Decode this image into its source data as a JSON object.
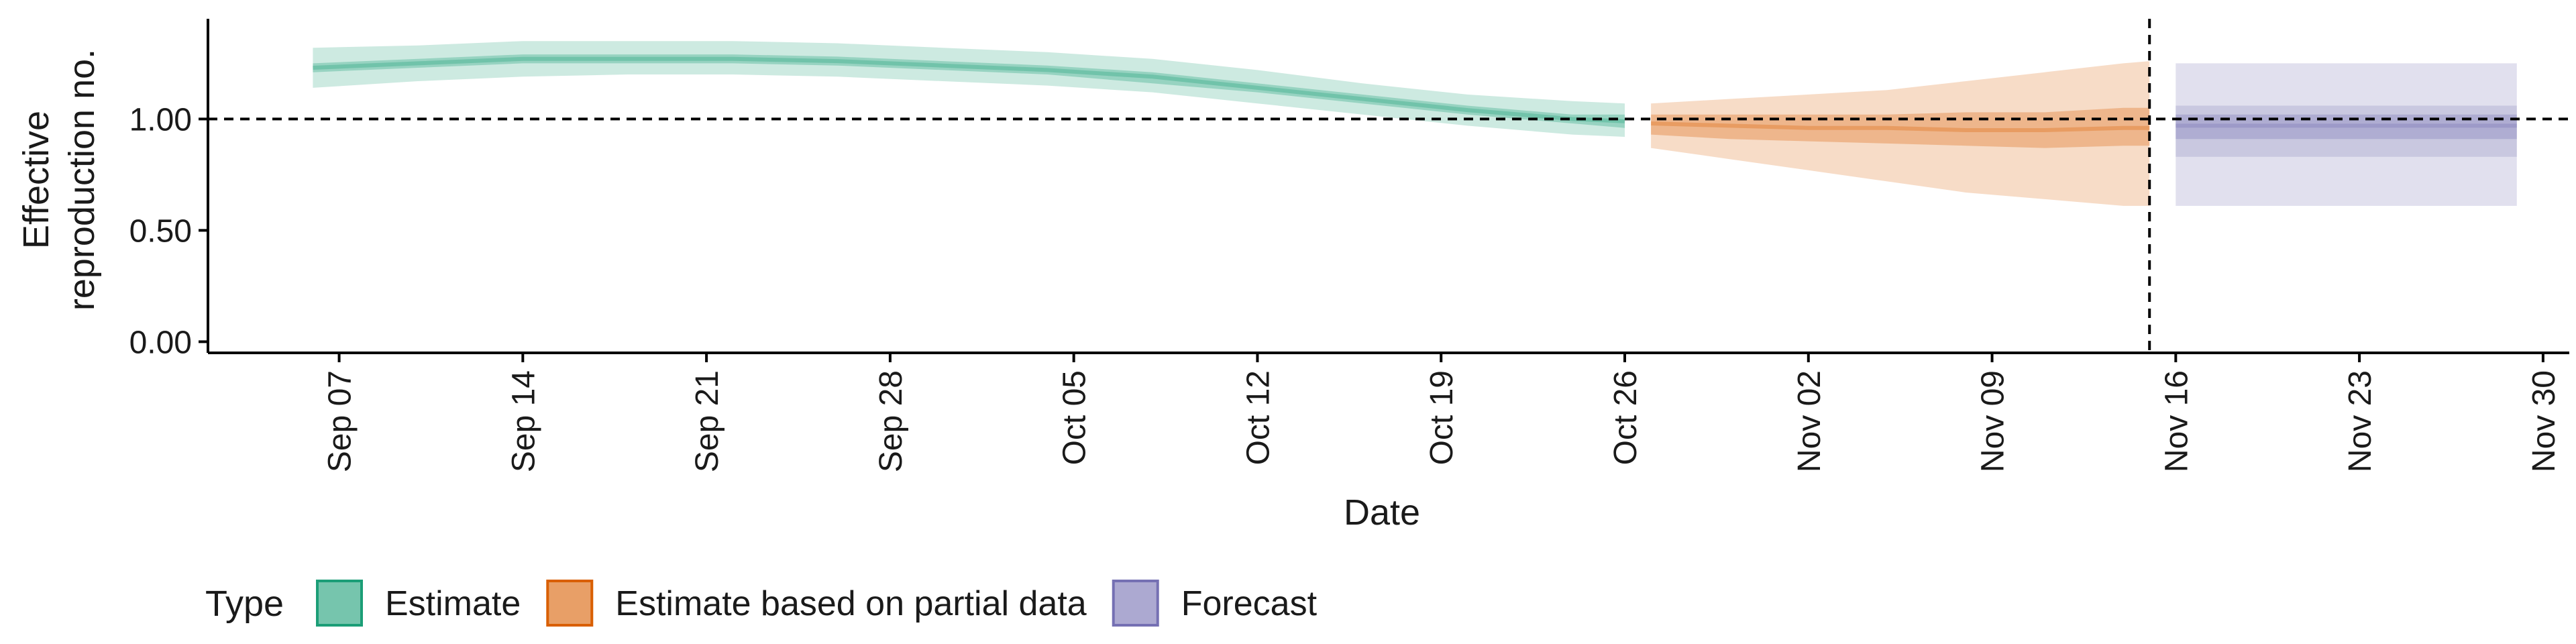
{
  "chart_data": {
    "type": "area",
    "xlabel": "Date",
    "ylabel_lines": [
      "Effective",
      "reproduction no."
    ],
    "x_ticks": [
      {
        "date": "2020-09-07",
        "label": "Sep 07"
      },
      {
        "date": "2020-09-14",
        "label": "Sep 14"
      },
      {
        "date": "2020-09-21",
        "label": "Sep 21"
      },
      {
        "date": "2020-09-28",
        "label": "Sep 28"
      },
      {
        "date": "2020-10-05",
        "label": "Oct 05"
      },
      {
        "date": "2020-10-12",
        "label": "Oct 12"
      },
      {
        "date": "2020-10-19",
        "label": "Oct 19"
      },
      {
        "date": "2020-10-26",
        "label": "Oct 26"
      },
      {
        "date": "2020-11-02",
        "label": "Nov 02"
      },
      {
        "date": "2020-11-09",
        "label": "Nov 09"
      },
      {
        "date": "2020-11-16",
        "label": "Nov 16"
      },
      {
        "date": "2020-11-23",
        "label": "Nov 23"
      },
      {
        "date": "2020-11-30",
        "label": "Nov 30"
      }
    ],
    "y_ticks": [
      {
        "value": 0,
        "label": "0.00"
      },
      {
        "value": 0.5,
        "label": "0.50"
      },
      {
        "value": 1,
        "label": "1.00"
      }
    ],
    "xlim": [
      "2020-09-02",
      "2020-12-01"
    ],
    "ylim": [
      -0.05,
      1.45
    ],
    "reference_line_y": 1.0,
    "reference_line_x": "2020-11-15",
    "legend": {
      "title": "Type",
      "position": "bottom-left",
      "items": [
        {
          "label": "Estimate",
          "color": "#1b9e77"
        },
        {
          "label": "Estimate based on partial data",
          "color": "#d95f02"
        },
        {
          "label": "Forecast",
          "color": "#7570b3"
        }
      ]
    },
    "series": [
      {
        "name": "Estimate",
        "color": "#1b9e77",
        "x": [
          "2020-09-06",
          "2020-09-10",
          "2020-09-14",
          "2020-09-18",
          "2020-09-22",
          "2020-09-26",
          "2020-09-30",
          "2020-10-04",
          "2020-10-08",
          "2020-10-12",
          "2020-10-16",
          "2020-10-20",
          "2020-10-24",
          "2020-10-26"
        ],
        "median": [
          1.23,
          1.25,
          1.27,
          1.27,
          1.27,
          1.26,
          1.24,
          1.22,
          1.19,
          1.14,
          1.09,
          1.04,
          1.0,
          0.99
        ],
        "lower50": [
          1.21,
          1.23,
          1.25,
          1.25,
          1.25,
          1.24,
          1.22,
          1.2,
          1.16,
          1.12,
          1.07,
          1.02,
          0.98,
          0.96
        ],
        "upper50": [
          1.25,
          1.27,
          1.29,
          1.29,
          1.29,
          1.28,
          1.26,
          1.24,
          1.21,
          1.16,
          1.11,
          1.06,
          1.02,
          1.02
        ],
        "lower90": [
          1.14,
          1.17,
          1.19,
          1.2,
          1.2,
          1.19,
          1.17,
          1.15,
          1.12,
          1.07,
          1.02,
          0.97,
          0.93,
          0.92
        ],
        "upper90": [
          1.32,
          1.33,
          1.35,
          1.35,
          1.35,
          1.34,
          1.32,
          1.3,
          1.27,
          1.22,
          1.16,
          1.11,
          1.08,
          1.07
        ]
      },
      {
        "name": "Estimate based on partial data",
        "color": "#d95f02",
        "x": [
          "2020-10-27",
          "2020-10-30",
          "2020-11-02",
          "2020-11-05",
          "2020-11-08",
          "2020-11-11",
          "2020-11-14",
          "2020-11-15"
        ],
        "median": [
          0.98,
          0.97,
          0.96,
          0.96,
          0.95,
          0.95,
          0.96,
          0.96
        ],
        "lower50": [
          0.93,
          0.91,
          0.9,
          0.89,
          0.88,
          0.87,
          0.88,
          0.88
        ],
        "upper50": [
          1.02,
          1.02,
          1.02,
          1.02,
          1.03,
          1.03,
          1.05,
          1.05
        ],
        "lower90": [
          0.87,
          0.82,
          0.77,
          0.72,
          0.67,
          0.64,
          0.61,
          0.61
        ],
        "upper90": [
          1.07,
          1.09,
          1.11,
          1.13,
          1.17,
          1.21,
          1.25,
          1.26
        ]
      },
      {
        "name": "Forecast",
        "color": "#7570b3",
        "x": [
          "2020-11-16",
          "2020-11-29"
        ],
        "median": [
          0.97,
          0.97
        ],
        "lower50": [
          0.91,
          0.91
        ],
        "upper50": [
          1.02,
          1.02
        ],
        "lower90": [
          0.83,
          0.83
        ],
        "upper90": [
          1.06,
          1.06
        ],
        "lower_outer": [
          0.61,
          0.61
        ],
        "upper_outer": [
          1.25,
          1.25
        ]
      }
    ]
  }
}
